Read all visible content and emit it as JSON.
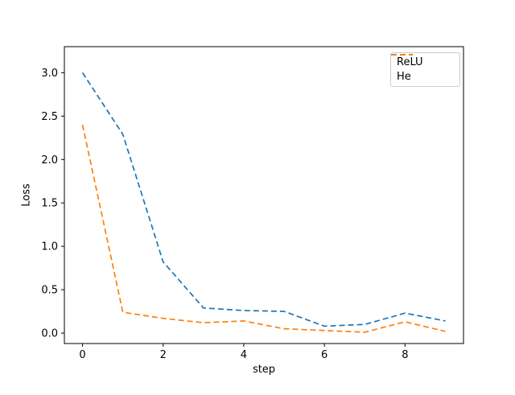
{
  "chart_data": {
    "type": "line",
    "title": "",
    "xlabel": "step",
    "ylabel": "Loss",
    "x": [
      0,
      1,
      2,
      3,
      4,
      5,
      6,
      7,
      8,
      9
    ],
    "series": [
      {
        "name": "ReLU",
        "color": "#1f77b4",
        "linestyle": "dashed",
        "values": [
          3.0,
          2.29,
          0.82,
          0.29,
          0.26,
          0.25,
          0.08,
          0.1,
          0.23,
          0.14
        ]
      },
      {
        "name": "He",
        "color": "#ff7f0e",
        "linestyle": "dashed",
        "values": [
          2.4,
          0.24,
          0.17,
          0.12,
          0.14,
          0.05,
          0.03,
          0.01,
          0.13,
          0.02
        ]
      }
    ],
    "xlim": [
      -0.45,
      9.45
    ],
    "ylim": [
      -0.12,
      3.3
    ],
    "xticks": {
      "values": [
        0,
        2,
        4,
        6,
        8
      ],
      "labels": [
        "0",
        "2",
        "4",
        "6",
        "8"
      ]
    },
    "yticks": {
      "values": [
        0.0,
        0.5,
        1.0,
        1.5,
        2.0,
        2.5,
        3.0
      ],
      "labels": [
        "0.0",
        "0.5",
        "1.0",
        "1.5",
        "2.0",
        "2.5",
        "3.0"
      ]
    },
    "grid": false,
    "legend_position": "upper right",
    "background_color": "#ffffff",
    "spine_color": "#000000",
    "legend_border_color": "#cccccc"
  }
}
